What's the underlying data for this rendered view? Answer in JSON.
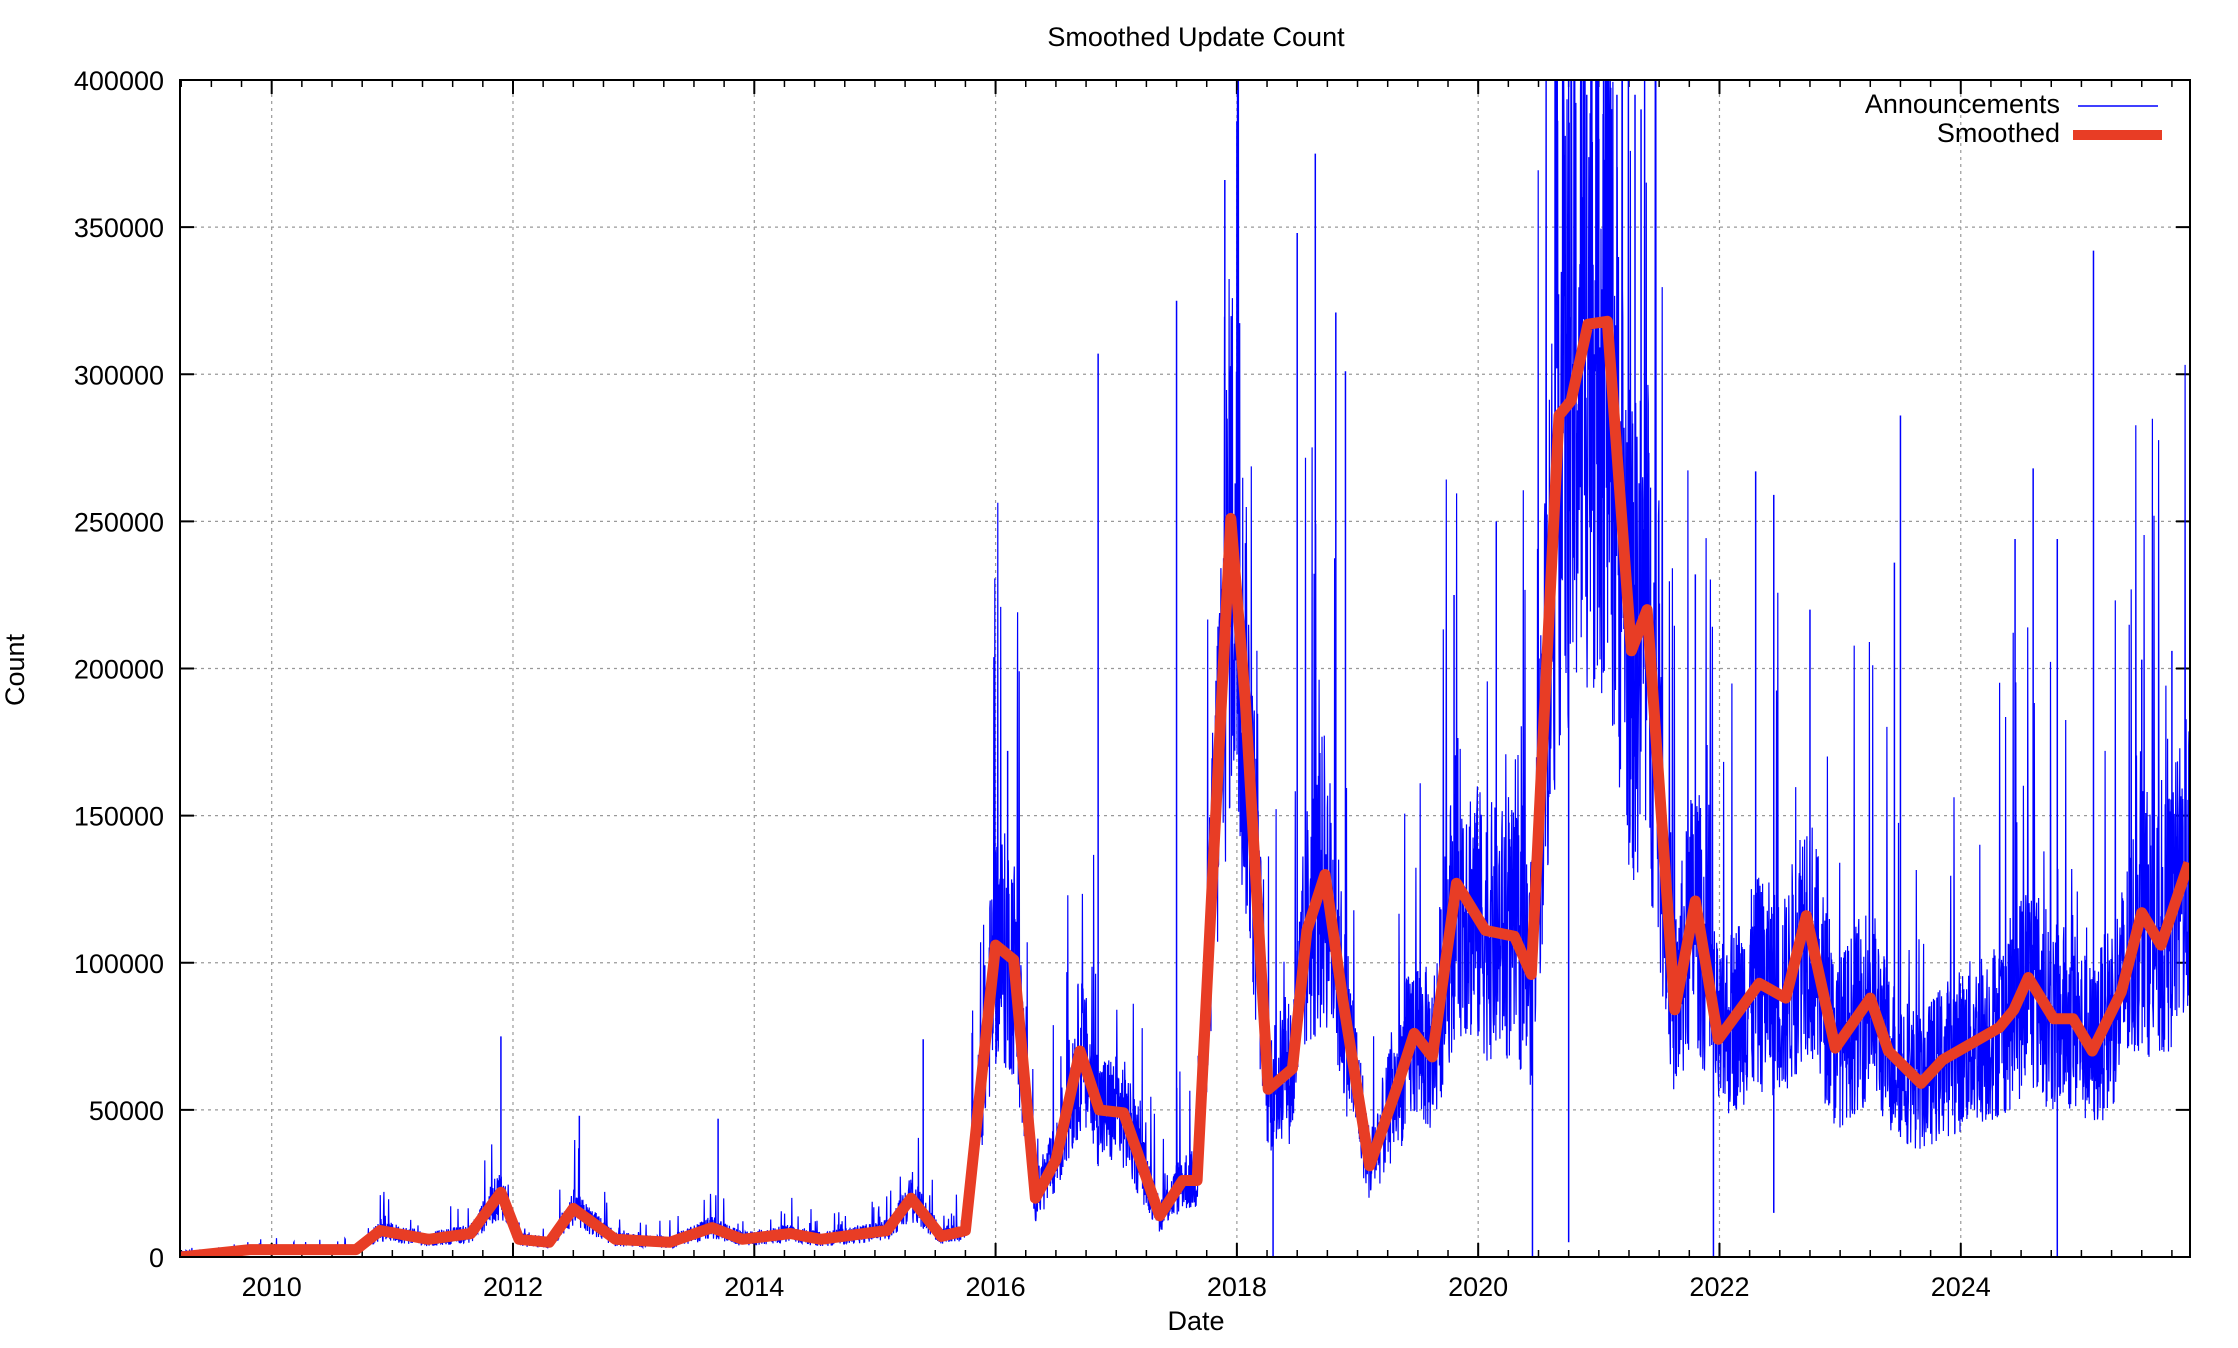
{
  "chart_data": {
    "type": "line",
    "title": "Smoothed Update Count",
    "xlabel": "Date",
    "ylabel": "Count",
    "xlim": [
      2009.24,
      2025.9
    ],
    "ylim": [
      0,
      400000
    ],
    "xticks": [
      "2010",
      "2012",
      "2014",
      "2016",
      "2018",
      "2020",
      "2022",
      "2024"
    ],
    "xtick_values": [
      2010,
      2012,
      2014,
      2016,
      2018,
      2020,
      2022,
      2024
    ],
    "yticks": [
      "0",
      "50000",
      "100000",
      "150000",
      "200000",
      "250000",
      "300000",
      "350000",
      "400000"
    ],
    "ytick_values": [
      0,
      50000,
      100000,
      150000,
      200000,
      250000,
      300000,
      350000,
      400000
    ],
    "grid": true,
    "legend_position": "top-right",
    "series": [
      {
        "name": "Announcements",
        "color": "#0000ff",
        "note_values": "daily counts; key spikes and dips listed",
        "spikes": [
          [
            2011.9,
            75000
          ],
          [
            2012.55,
            48000
          ],
          [
            2013.7,
            47000
          ],
          [
            2015.4,
            74000
          ],
          [
            2016.1,
            172000
          ],
          [
            2016.85,
            307000
          ],
          [
            2017.5,
            325000
          ],
          [
            2017.9,
            366000
          ],
          [
            2018.0,
            386000
          ],
          [
            2018.5,
            348000
          ],
          [
            2018.65,
            375000
          ],
          [
            2018.82,
            321000
          ],
          [
            2018.9,
            301000
          ],
          [
            2019.8,
            225000
          ],
          [
            2020.15,
            250000
          ],
          [
            2020.8,
            400000
          ],
          [
            2020.9,
            395000
          ],
          [
            2021.0,
            380000
          ],
          [
            2021.15,
            395000
          ],
          [
            2021.3,
            395000
          ],
          [
            2021.35,
            390000
          ],
          [
            2021.8,
            232000
          ],
          [
            2022.3,
            267000
          ],
          [
            2022.45,
            259000
          ],
          [
            2022.75,
            220000
          ],
          [
            2023.45,
            236000
          ],
          [
            2023.5,
            286000
          ],
          [
            2024.45,
            244000
          ],
          [
            2024.6,
            268000
          ],
          [
            2024.8,
            244000
          ],
          [
            2025.1,
            342000
          ],
          [
            2025.5,
            203000
          ],
          [
            2025.75,
            206000
          ]
        ],
        "dips": [
          [
            2018.3,
            0
          ],
          [
            2020.45,
            0
          ],
          [
            2020.75,
            5000
          ],
          [
            2021.95,
            0
          ],
          [
            2022.45,
            15000
          ],
          [
            2024.8,
            0
          ]
        ]
      },
      {
        "name": "Smoothed",
        "color": "#e83d25",
        "x": [
          2009.24,
          2009.82,
          2010.7,
          2010.9,
          2011.3,
          2011.65,
          2011.9,
          2012.05,
          2012.3,
          2012.5,
          2012.85,
          2013.3,
          2013.65,
          2013.9,
          2014.3,
          2014.55,
          2015.1,
          2015.3,
          2015.55,
          2015.75,
          2016.0,
          2016.15,
          2016.33,
          2016.5,
          2016.7,
          2016.86,
          2017.06,
          2017.36,
          2017.55,
          2017.67,
          2017.95,
          2018.07,
          2018.26,
          2018.46,
          2018.58,
          2018.73,
          2018.88,
          2019.1,
          2019.33,
          2019.47,
          2019.62,
          2019.82,
          2020.06,
          2020.3,
          2020.44,
          2020.67,
          2020.77,
          2020.91,
          2021.07,
          2021.27,
          2021.4,
          2021.63,
          2021.8,
          2021.99,
          2022.33,
          2022.55,
          2022.72,
          2022.96,
          2023.25,
          2023.4,
          2023.67,
          2023.85,
          2024.32,
          2024.44,
          2024.56,
          2024.77,
          2024.93,
          2025.09,
          2025.33,
          2025.5,
          2025.66,
          2025.89
        ],
        "y": [
          0,
          2500,
          2500,
          9000,
          6000,
          8000,
          22000,
          6000,
          5000,
          16500,
          6000,
          5000,
          10000,
          6000,
          8000,
          6000,
          9000,
          20000,
          7000,
          9000,
          106000,
          101000,
          20000,
          33000,
          70000,
          50000,
          49000,
          14000,
          26000,
          26000,
          251000,
          189000,
          57000,
          64000,
          111000,
          130000,
          87000,
          31000,
          58000,
          76000,
          68000,
          127000,
          111000,
          109000,
          96000,
          286000,
          291000,
          317000,
          318000,
          206000,
          220000,
          84000,
          121000,
          74000,
          93000,
          88000,
          116000,
          71000,
          88000,
          70000,
          59000,
          67000,
          78000,
          84000,
          95000,
          81000,
          81000,
          70000,
          90000,
          117000,
          106000,
          134000
        ]
      }
    ]
  }
}
